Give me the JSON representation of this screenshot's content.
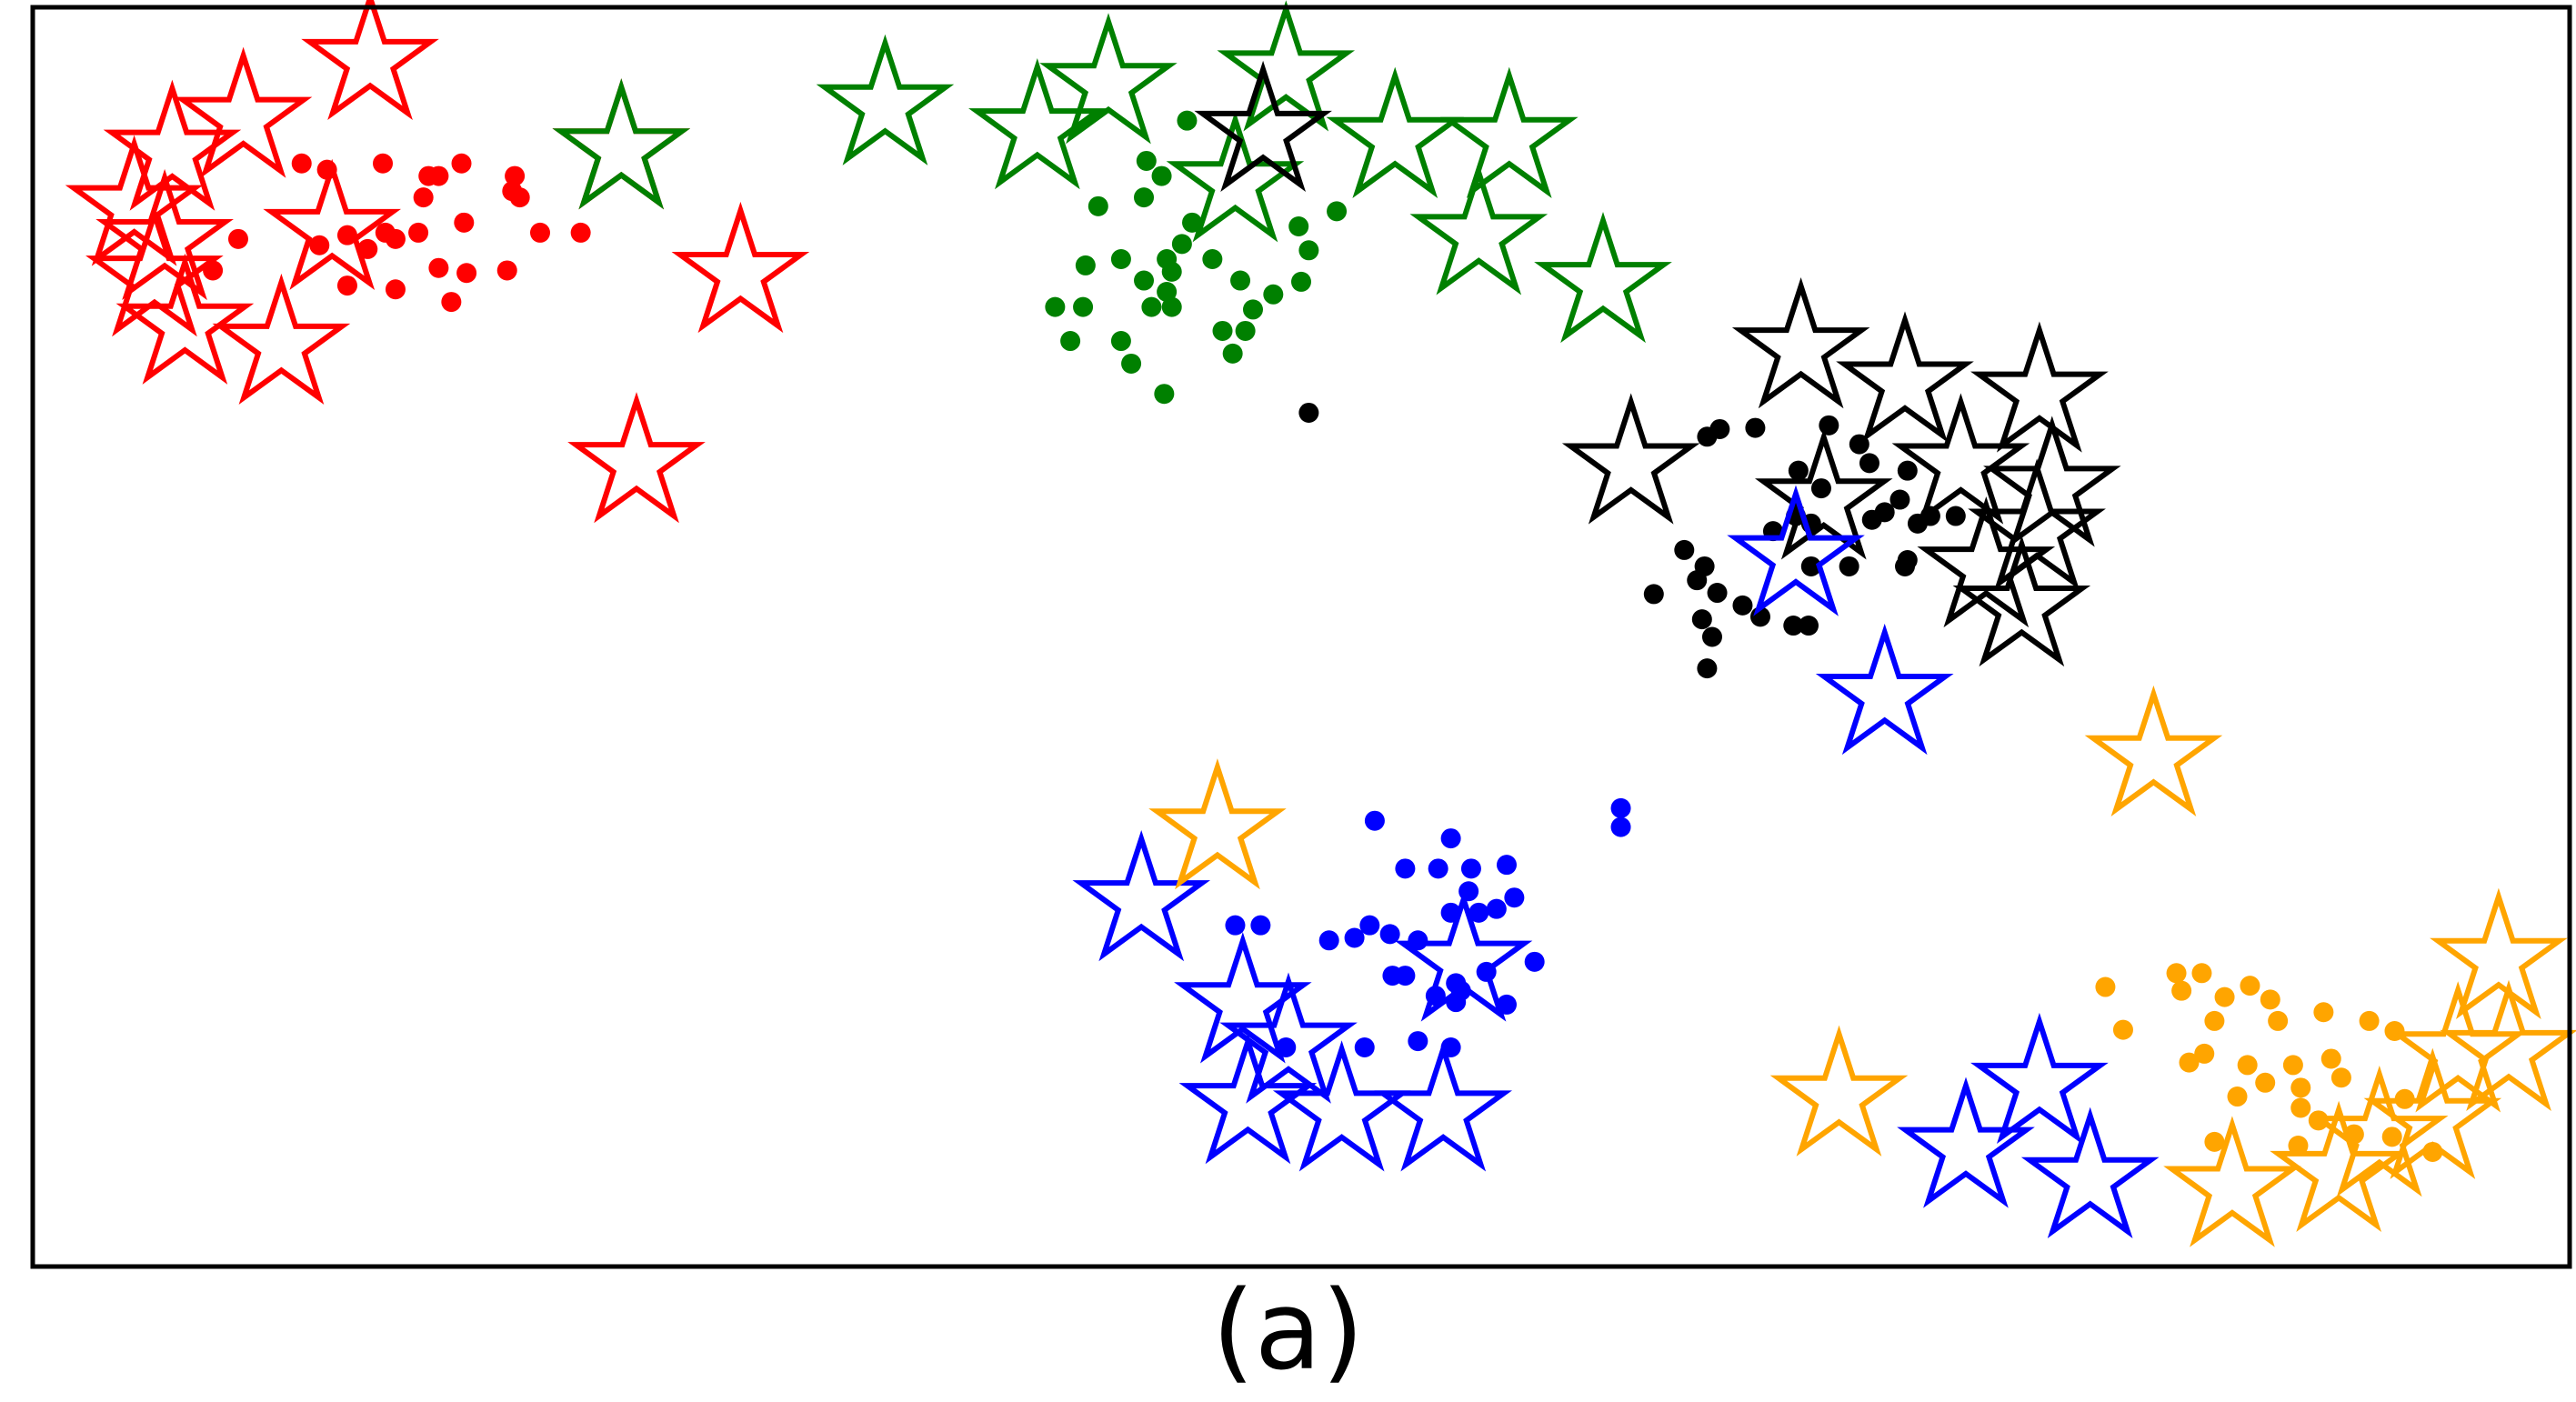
{
  "caption": "(a)",
  "chart_data": {
    "type": "scatter",
    "title": "",
    "xlabel": "",
    "ylabel": "",
    "xlim": [
      0,
      100
    ],
    "ylim": [
      0,
      100
    ],
    "grid": false,
    "axis_ticks": false,
    "legend": "none",
    "series": [
      {
        "color": "#ff0000",
        "points": [
          [
            10.6,
            87.6
          ],
          [
            11.6,
            87.1
          ],
          [
            13.8,
            87.6
          ],
          [
            15.6,
            86.6
          ],
          [
            15.4,
            84.9
          ],
          [
            16.0,
            86.6
          ],
          [
            16.9,
            87.6
          ],
          [
            19.2,
            84.9
          ],
          [
            19.0,
            86.6
          ],
          [
            18.9,
            85.4
          ],
          [
            17.0,
            82.9
          ],
          [
            15.2,
            82.1
          ],
          [
            14.3,
            81.6
          ],
          [
            13.9,
            82.1
          ],
          [
            12.4,
            81.9
          ],
          [
            11.3,
            81.1
          ],
          [
            8.1,
            81.6
          ],
          [
            7.1,
            79.1
          ],
          [
            12.4,
            77.9
          ],
          [
            14.3,
            77.6
          ],
          [
            16.0,
            79.3
          ],
          [
            17.1,
            78.9
          ],
          [
            18.7,
            79.1
          ],
          [
            20.0,
            82.1
          ],
          [
            21.6,
            82.1
          ],
          [
            16.5,
            76.6
          ],
          [
            13.2,
            80.8
          ]
        ],
        "stars": [
          [
            13.3,
            95.7
          ],
          [
            8.3,
            91.1
          ],
          [
            5.5,
            88.5
          ],
          [
            4.0,
            84.1
          ],
          [
            5.2,
            81.4
          ],
          [
            4.8,
            78.5
          ],
          [
            6.0,
            74.7
          ],
          [
            9.8,
            73.1
          ],
          [
            11.8,
            82.2
          ],
          [
            23.2,
            88.6
          ],
          [
            27.9,
            78.8
          ],
          [
            23.8,
            63.7
          ]
        ]
      },
      {
        "color": "#008000",
        "points": [
          [
            45.5,
            91.0
          ],
          [
            43.9,
            87.8
          ],
          [
            44.5,
            86.6
          ],
          [
            43.8,
            84.9
          ],
          [
            42.0,
            84.2
          ],
          [
            51.4,
            83.8
          ],
          [
            49.9,
            82.6
          ],
          [
            45.7,
            82.9
          ],
          [
            45.3,
            81.2
          ],
          [
            44.7,
            80.0
          ],
          [
            41.5,
            79.5
          ],
          [
            42.9,
            80.0
          ],
          [
            44.9,
            79.0
          ],
          [
            46.5,
            80.0
          ],
          [
            43.8,
            78.3
          ],
          [
            44.7,
            77.4
          ],
          [
            50.0,
            78.2
          ],
          [
            50.3,
            80.7
          ],
          [
            47.6,
            78.3
          ],
          [
            48.9,
            77.2
          ],
          [
            40.3,
            76.2
          ],
          [
            41.4,
            76.2
          ],
          [
            44.1,
            76.2
          ],
          [
            44.9,
            76.2
          ],
          [
            48.1,
            76.0
          ],
          [
            42.9,
            73.5
          ],
          [
            46.9,
            74.3
          ],
          [
            47.8,
            74.3
          ],
          [
            47.3,
            72.5
          ],
          [
            40.9,
            73.5
          ],
          [
            43.3,
            71.7
          ],
          [
            44.6,
            69.3
          ]
        ],
        "stars": [
          [
            33.6,
            92.1
          ],
          [
            39.6,
            90.2
          ],
          [
            42.4,
            93.8
          ],
          [
            49.4,
            94.8
          ],
          [
            53.7,
            89.5
          ],
          [
            58.2,
            89.5
          ],
          [
            47.4,
            86.0
          ],
          [
            57.0,
            81.8
          ],
          [
            61.9,
            78.0
          ],
          [
            23.2,
            88.6
          ]
        ]
      },
      {
        "color": "#000000",
        "points": [
          [
            50.3,
            67.8
          ],
          [
            66.0,
            65.9
          ],
          [
            66.5,
            66.5
          ],
          [
            67.9,
            66.6
          ],
          [
            70.8,
            66.8
          ],
          [
            72.0,
            65.3
          ],
          [
            69.6,
            63.2
          ],
          [
            70.5,
            61.8
          ],
          [
            72.4,
            63.8
          ],
          [
            73.9,
            63.2
          ],
          [
            69.5,
            59.6
          ],
          [
            70.1,
            59.0
          ],
          [
            73.6,
            60.9
          ],
          [
            73.0,
            59.9
          ],
          [
            72.5,
            59.3
          ],
          [
            74.3,
            59.0
          ],
          [
            74.8,
            59.6
          ],
          [
            75.8,
            59.6
          ],
          [
            68.6,
            58.4
          ],
          [
            65.1,
            56.9
          ],
          [
            65.9,
            55.6
          ],
          [
            70.1,
            55.6
          ],
          [
            71.6,
            55.6
          ],
          [
            73.8,
            55.6
          ],
          [
            73.9,
            56.1
          ],
          [
            65.6,
            54.5
          ],
          [
            66.4,
            53.5
          ],
          [
            63.9,
            53.4
          ],
          [
            67.4,
            52.5
          ],
          [
            68.1,
            51.6
          ],
          [
            65.8,
            51.4
          ],
          [
            66.2,
            50.0
          ],
          [
            69.4,
            50.9
          ],
          [
            70.0,
            50.9
          ],
          [
            66.0,
            47.5
          ]
        ],
        "stars": [
          [
            48.5,
            90.0
          ],
          [
            63.0,
            63.6
          ],
          [
            69.7,
            72.8
          ],
          [
            73.8,
            70.1
          ],
          [
            79.1,
            69.3
          ],
          [
            76.0,
            63.6
          ],
          [
            70.6,
            60.8
          ],
          [
            79.6,
            61.8
          ],
          [
            79.0,
            58.4
          ],
          [
            78.4,
            52.3
          ],
          [
            77.0,
            55.4
          ]
        ]
      },
      {
        "color": "#0000ff",
        "points": [
          [
            52.9,
            35.4
          ],
          [
            55.9,
            34.0
          ],
          [
            62.6,
            36.4
          ],
          [
            62.6,
            34.9
          ],
          [
            54.1,
            31.6
          ],
          [
            55.4,
            31.6
          ],
          [
            56.7,
            31.6
          ],
          [
            56.6,
            29.8
          ],
          [
            58.1,
            31.9
          ],
          [
            57.0,
            28.1
          ],
          [
            58.4,
            29.3
          ],
          [
            47.4,
            27.1
          ],
          [
            48.4,
            27.1
          ],
          [
            52.7,
            27.1
          ],
          [
            53.5,
            26.4
          ],
          [
            55.9,
            28.1
          ],
          [
            57.7,
            28.4
          ],
          [
            51.1,
            25.9
          ],
          [
            52.1,
            26.1
          ],
          [
            54.6,
            25.9
          ],
          [
            53.6,
            23.1
          ],
          [
            54.1,
            23.1
          ],
          [
            55.3,
            21.5
          ],
          [
            56.3,
            21.9
          ],
          [
            56.1,
            22.5
          ],
          [
            57.3,
            23.4
          ],
          [
            56.1,
            21.0
          ],
          [
            54.6,
            17.9
          ],
          [
            49.4,
            17.4
          ],
          [
            52.5,
            17.4
          ],
          [
            55.9,
            17.4
          ],
          [
            58.1,
            20.8
          ],
          [
            59.2,
            24.2
          ]
        ],
        "stars": [
          [
            43.7,
            28.9
          ],
          [
            47.7,
            20.8
          ],
          [
            49.5,
            17.6
          ],
          [
            47.9,
            12.8
          ],
          [
            51.6,
            12.2
          ],
          [
            55.6,
            12.2
          ],
          [
            56.4,
            24.1
          ],
          [
            73.0,
            45.3
          ],
          [
            79.1,
            14.4
          ],
          [
            76.2,
            9.3
          ],
          [
            81.1,
            6.9
          ],
          [
            69.5,
            56.3
          ]
        ]
      },
      {
        "color": "#ffa500",
        "points": [
          [
            81.7,
            22.2
          ],
          [
            84.5,
            23.3
          ],
          [
            85.5,
            23.3
          ],
          [
            86.4,
            21.4
          ],
          [
            84.7,
            21.9
          ],
          [
            82.4,
            18.8
          ],
          [
            87.4,
            22.3
          ],
          [
            88.2,
            21.2
          ],
          [
            88.5,
            19.5
          ],
          [
            90.3,
            20.2
          ],
          [
            92.1,
            19.5
          ],
          [
            93.1,
            18.7
          ],
          [
            86.0,
            19.5
          ],
          [
            85.6,
            16.9
          ],
          [
            85.0,
            16.2
          ],
          [
            87.3,
            16.0
          ],
          [
            89.1,
            16.0
          ],
          [
            90.6,
            16.5
          ],
          [
            88.0,
            14.6
          ],
          [
            89.4,
            14.2
          ],
          [
            91.0,
            15.0
          ],
          [
            93.5,
            13.3
          ],
          [
            86.9,
            13.5
          ],
          [
            89.4,
            12.6
          ],
          [
            90.1,
            11.6
          ],
          [
            86.0,
            9.9
          ],
          [
            89.3,
            9.6
          ],
          [
            91.5,
            10.5
          ],
          [
            93.0,
            10.3
          ],
          [
            94.6,
            9.1
          ]
        ],
        "stars": [
          [
            46.7,
            34.6
          ],
          [
            83.6,
            40.4
          ],
          [
            71.2,
            13.4
          ],
          [
            86.7,
            6.2
          ],
          [
            90.9,
            7.4
          ],
          [
            94.6,
            11.6
          ],
          [
            95.6,
            16.9
          ],
          [
            97.6,
            17.0
          ],
          [
            97.2,
            24.3
          ],
          [
            92.5,
            10.2
          ]
        ]
      }
    ]
  }
}
